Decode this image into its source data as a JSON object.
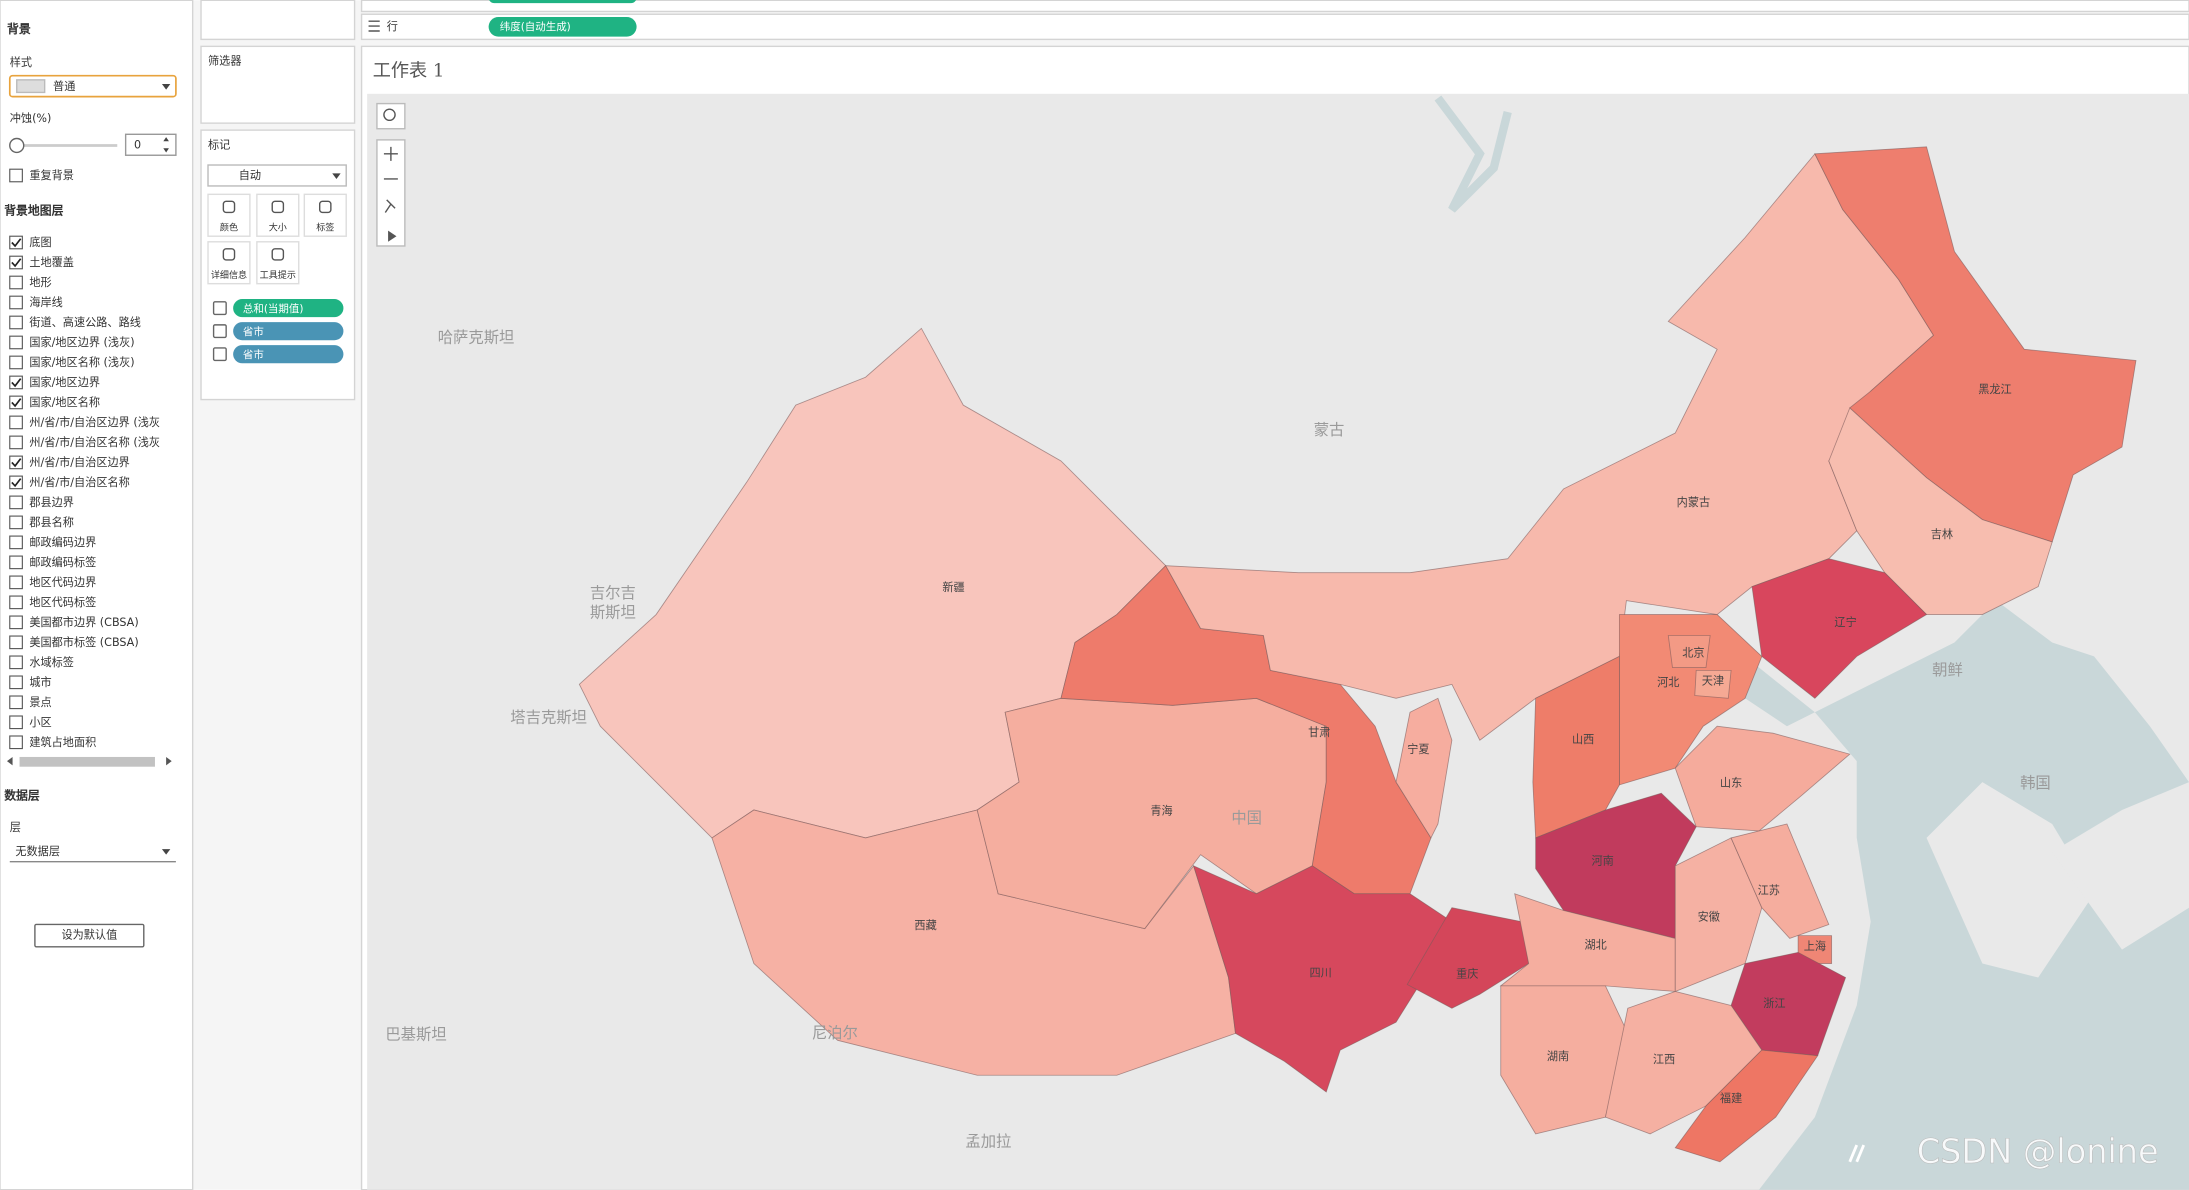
{
  "left_panel": {
    "background": {
      "title": "背景",
      "style_label": "样式",
      "style_value": "普通",
      "washout_label": "冲蚀(%)",
      "washout_value": "0",
      "repeat_background": {
        "label": "重复背景",
        "checked": false
      }
    },
    "map_layers": {
      "title": "背景地图层",
      "items": [
        {
          "label": "底图",
          "checked": true
        },
        {
          "label": "土地覆盖",
          "checked": true
        },
        {
          "label": "地形",
          "checked": false
        },
        {
          "label": "海岸线",
          "checked": false
        },
        {
          "label": "街道、高速公路、路线",
          "checked": false
        },
        {
          "label": "国家/地区边界 (浅灰)",
          "checked": false
        },
        {
          "label": "国家/地区名称 (浅灰)",
          "checked": false
        },
        {
          "label": "国家/地区边界",
          "checked": true
        },
        {
          "label": "国家/地区名称",
          "checked": true
        },
        {
          "label": "州/省/市/自治区边界 (浅灰",
          "checked": false
        },
        {
          "label": "州/省/市/自治区名称 (浅灰",
          "checked": false
        },
        {
          "label": "州/省/市/自治区边界",
          "checked": true
        },
        {
          "label": "州/省/市/自治区名称",
          "checked": true
        },
        {
          "label": "郡县边界",
          "checked": false
        },
        {
          "label": "郡县名称",
          "checked": false
        },
        {
          "label": "邮政编码边界",
          "checked": false
        },
        {
          "label": "邮政编码标签",
          "checked": false
        },
        {
          "label": "地区代码边界",
          "checked": false
        },
        {
          "label": "地区代码标签",
          "checked": false
        },
        {
          "label": "美国都市边界 (CBSA)",
          "checked": false
        },
        {
          "label": "美国都市标签 (CBSA)",
          "checked": false
        },
        {
          "label": "水域标签",
          "checked": false
        },
        {
          "label": "城市",
          "checked": false
        },
        {
          "label": "景点",
          "checked": false
        },
        {
          "label": "小区",
          "checked": false
        },
        {
          "label": "建筑占地面积",
          "checked": false
        }
      ]
    },
    "data_layer": {
      "title": "数据层",
      "layer_label": "层",
      "layer_value": "无数据层"
    },
    "default_button": "设为默认值"
  },
  "filters_card": {
    "title": "筛选器"
  },
  "marks_card": {
    "title": "标记",
    "mark_type": "自动",
    "buttons": [
      "颜色",
      "大小",
      "标签",
      "详细信息",
      "工具提示"
    ],
    "pills": [
      {
        "text": "总和(当期值)",
        "color": "#1fb383"
      },
      {
        "text": "省市",
        "color": "#4a94b5"
      },
      {
        "text": "省市",
        "color": "#4a94b5"
      }
    ]
  },
  "rows_shelf": {
    "label": "行",
    "pill": "纬度(自动生成)"
  },
  "sheet": {
    "title": "工作表 1"
  },
  "map": {
    "country_labels": [
      "哈萨克斯坦",
      "蒙古",
      "吉尔吉",
      "斯斯坦",
      "塔吉克斯坦",
      "朝鲜",
      "韩国",
      "尼泊尔",
      "巴基斯坦",
      "中国",
      "孟加拉"
    ],
    "provinces": [
      {
        "name": "新疆",
        "color": "#f8c5bc"
      },
      {
        "name": "西藏",
        "color": "#f6b1a4"
      },
      {
        "name": "青海",
        "color": "#f5ae9f"
      },
      {
        "name": "甘肃",
        "color": "#ee7b6b"
      },
      {
        "name": "内蒙古",
        "color": "#f7b9ac"
      },
      {
        "name": "黑龙江",
        "color": "#ee7e6e"
      },
      {
        "name": "吉林",
        "color": "#f7bdaf"
      },
      {
        "name": "辽宁",
        "color": "#d8465d"
      },
      {
        "name": "河北",
        "color": "#f28a74"
      },
      {
        "name": "北京",
        "color": "#f39a85"
      },
      {
        "name": "天津",
        "color": "#f5a994"
      },
      {
        "name": "山西",
        "color": "#ee7d69"
      },
      {
        "name": "山东",
        "color": "#f5ab9c"
      },
      {
        "name": "宁夏",
        "color": "#f6ad9f"
      },
      {
        "name": "河南",
        "color": "#c13b5d"
      },
      {
        "name": "四川",
        "color": "#d6485d"
      },
      {
        "name": "重庆",
        "color": "#d4465a"
      },
      {
        "name": "湖北",
        "color": "#f5ae9f"
      },
      {
        "name": "安徽",
        "color": "#f5b1a3"
      },
      {
        "name": "江苏",
        "color": "#f5ad9e"
      },
      {
        "name": "上海",
        "color": "#ef8675"
      },
      {
        "name": "浙江",
        "color": "#c23c5e"
      },
      {
        "name": "湖南",
        "color": "#f5ae9f"
      },
      {
        "name": "江西",
        "color": "#f5b0a2"
      },
      {
        "name": "福建",
        "color": "#ee7664"
      }
    ]
  },
  "watermark": "CSDN @lonine"
}
